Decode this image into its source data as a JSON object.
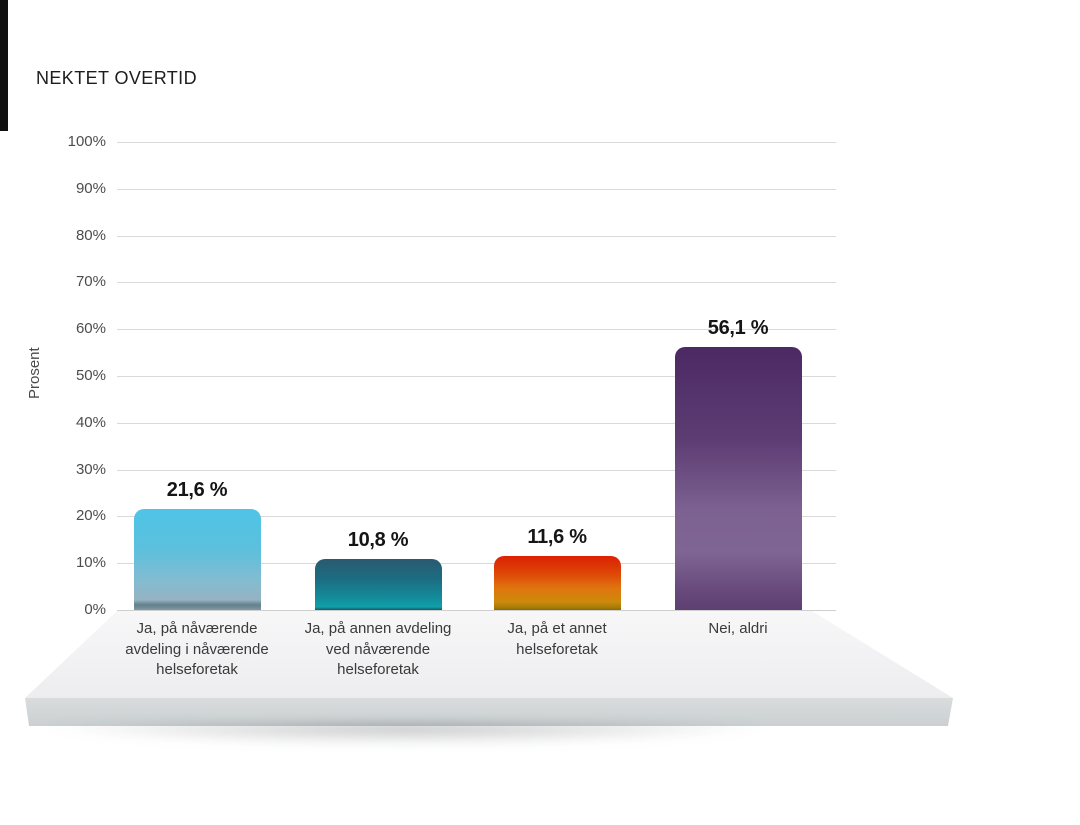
{
  "title": "NEKTET OVERTID",
  "chart_data": {
    "type": "bar",
    "title": "NEKTET OVERTID",
    "xlabel": "",
    "ylabel": "Prosent",
    "ylim": [
      0,
      100
    ],
    "ytick_step": 10,
    "ytick_labels": [
      "0%",
      "10%",
      "20%",
      "30%",
      "40%",
      "50%",
      "60%",
      "70%",
      "80%",
      "90%",
      "100%"
    ],
    "grid": true,
    "legend": false,
    "categories": [
      "Ja, på nåværende\navdeling i nåværende\nhelseforetak",
      "Ja, på annen avdeling\nved nåværende\nhelseforetak",
      "Ja, på et annet\nhelseforetak",
      "Nei, aldri"
    ],
    "values": [
      21.6,
      10.8,
      11.6,
      56.1
    ],
    "value_labels": [
      "21,6 %",
      "10,8 %",
      "11,6 %",
      "56,1 %"
    ],
    "bar_gradients": [
      [
        "#4fc4e6 0%",
        "#5cc0dd 40%",
        "#82bcd1 70%",
        "#95b3c2 90%",
        "#647f8d 95%",
        "#7e99a4 100%"
      ],
      [
        "#2a5a70 0%",
        "#1c6d82 40%",
        "#12909d 80%",
        "#10a0aa 94%",
        "#0b5c66 100%"
      ],
      [
        "#dc2104 0%",
        "#dd4306 30%",
        "#e0750e 60%",
        "#cc8a0b 85%",
        "#a87c07 95%",
        "#8a6a05 100%"
      ],
      [
        "#4c2963 0%",
        "#5d3c73 35%",
        "#7c6191 62%",
        "#7f6594 78%",
        "#684b7c 92%",
        "#5d4072 100%"
      ]
    ],
    "colors_note": {
      "grid_color": "#d9d9d9",
      "platform_top": "#f4f4f6",
      "platform_front": "#d2d7d8",
      "text_color": "#3a3a3a"
    }
  }
}
